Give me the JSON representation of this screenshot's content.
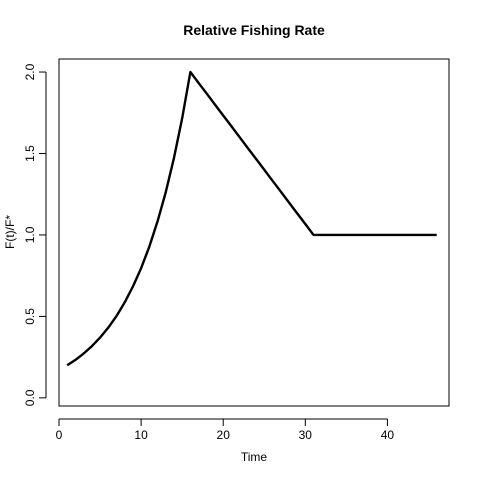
{
  "chart_data": {
    "type": "line",
    "title": "Relative Fishing Rate",
    "xlabel": "Time",
    "ylabel": "F(t)/F*",
    "xlim": [
      0,
      47.5
    ],
    "ylim": [
      -0.05,
      2.08
    ],
    "x_ticks": [
      0,
      10,
      20,
      30,
      40
    ],
    "x_tick_labels": [
      "0",
      "10",
      "20",
      "30",
      "40"
    ],
    "y_ticks": [
      0.0,
      0.5,
      1.0,
      1.5,
      2.0
    ],
    "y_tick_labels": [
      "0.0",
      "0.5",
      "1.0",
      "1.5",
      "2.0"
    ],
    "grid": false,
    "line_color": "#000000",
    "series": [
      {
        "name": "F(t)/F*",
        "x": [
          1,
          2,
          3,
          4,
          5,
          6,
          7,
          8,
          9,
          10,
          11,
          12,
          13,
          14,
          15,
          16,
          17,
          18,
          19,
          20,
          21,
          22,
          23,
          24,
          25,
          26,
          27,
          28,
          29,
          30,
          31,
          32,
          33,
          34,
          35,
          36,
          37,
          38,
          39,
          40,
          41,
          42,
          43,
          44,
          45,
          46
        ],
        "y": [
          0.2,
          0.233,
          0.272,
          0.317,
          0.37,
          0.431,
          0.502,
          0.586,
          0.683,
          0.796,
          0.928,
          1.083,
          1.262,
          1.472,
          1.716,
          2.0,
          1.933,
          1.867,
          1.8,
          1.733,
          1.667,
          1.6,
          1.533,
          1.467,
          1.4,
          1.333,
          1.267,
          1.2,
          1.133,
          1.067,
          1.0,
          1.0,
          1.0,
          1.0,
          1.0,
          1.0,
          1.0,
          1.0,
          1.0,
          1.0,
          1.0,
          1.0,
          1.0,
          1.0,
          1.0,
          1.0
        ]
      }
    ]
  }
}
